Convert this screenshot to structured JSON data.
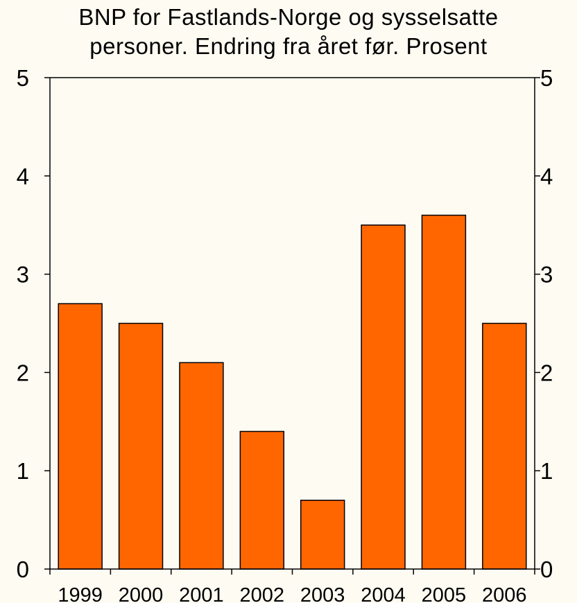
{
  "chart_data": {
    "type": "bar",
    "title_line1": "BNP for Fastlands-Norge og sysselsatte",
    "title_line2": "personer. Endring fra året før. Prosent",
    "categories": [
      "1999",
      "2000",
      "2001",
      "2002",
      "2003",
      "2004",
      "2005",
      "2006"
    ],
    "values": [
      2.7,
      2.5,
      2.1,
      1.4,
      0.7,
      3.5,
      3.6,
      2.5
    ],
    "ylim": [
      0,
      5
    ],
    "yticks": [
      "0",
      "1",
      "2",
      "3",
      "4",
      "5"
    ],
    "grid": false,
    "bar_color": "#ff6600",
    "background_color": "#fdfbf2"
  }
}
